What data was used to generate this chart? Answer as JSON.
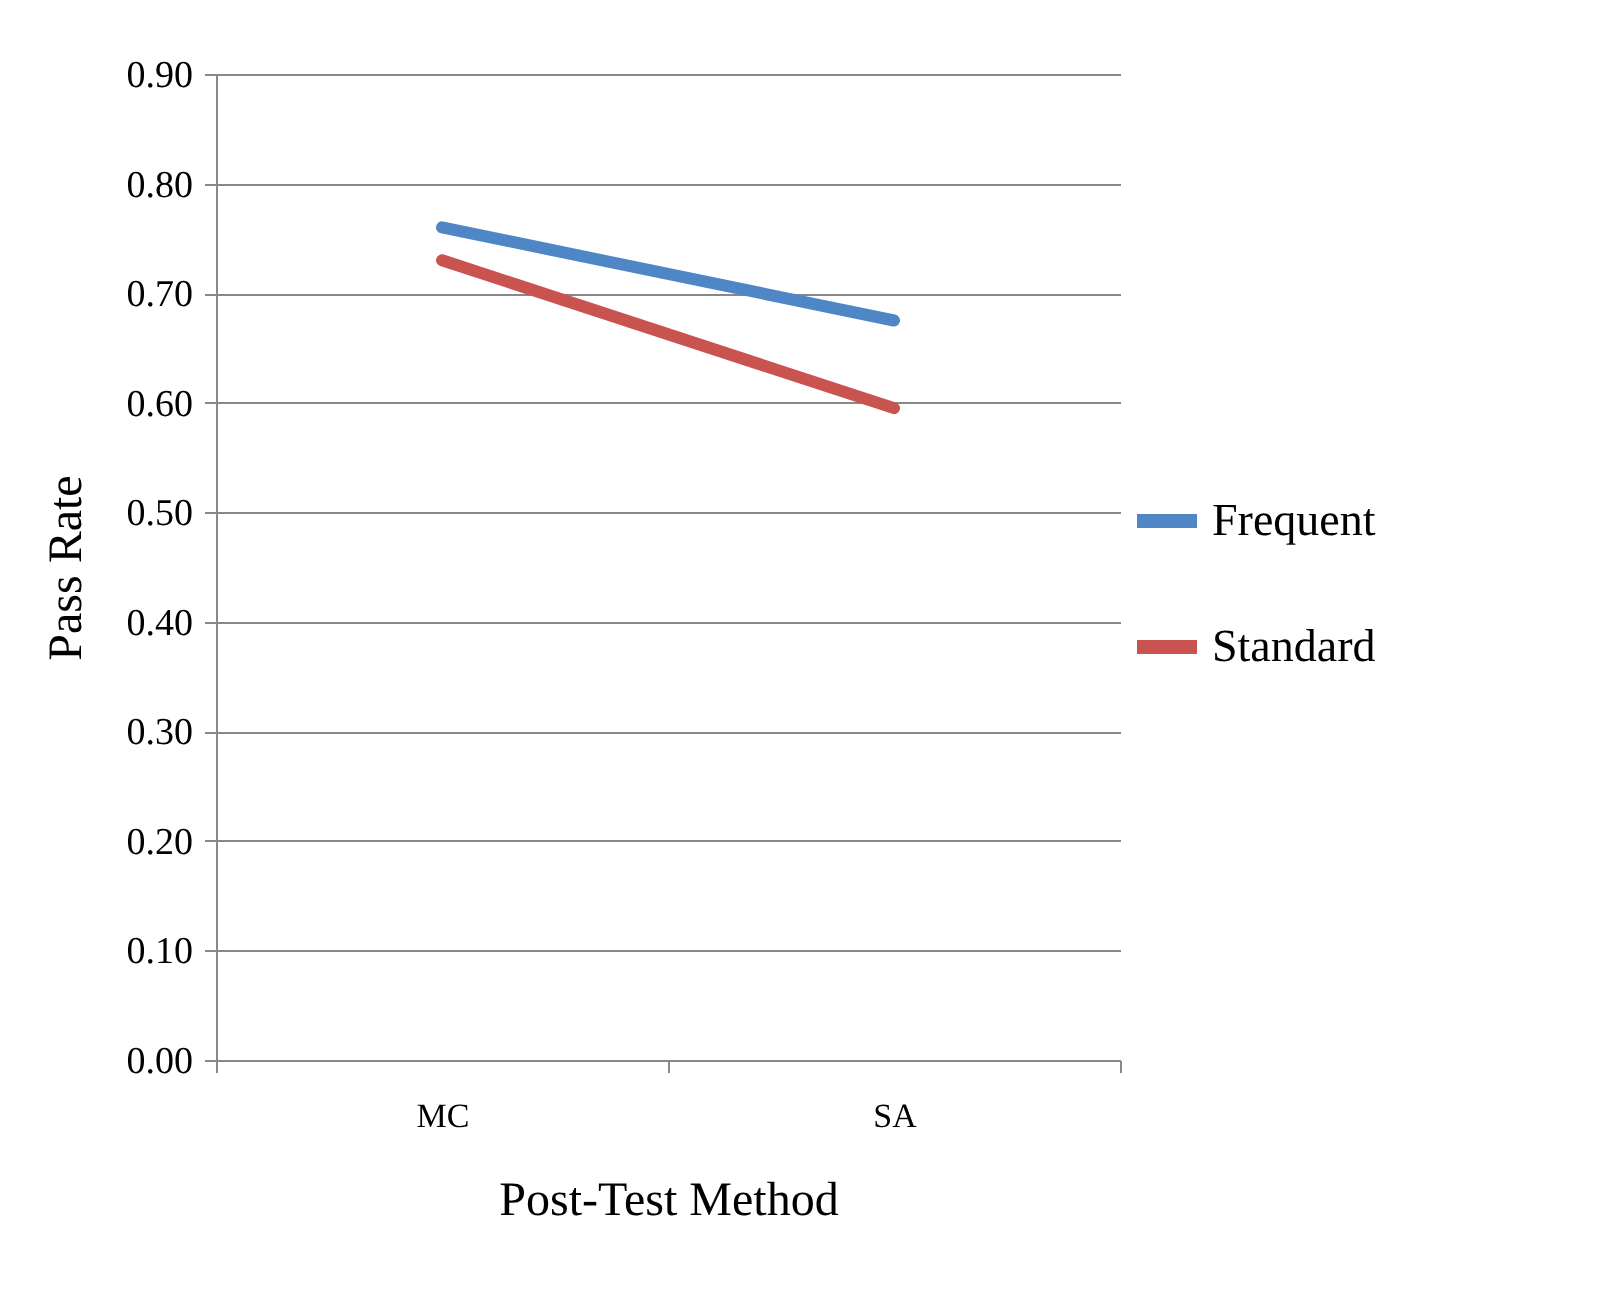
{
  "chart_data": {
    "type": "line",
    "xlabel": "Post-Test Method",
    "ylabel": "Pass Rate",
    "categories": [
      "MC",
      "SA"
    ],
    "series": [
      {
        "name": "Frequent",
        "color": "#4f86c6",
        "values": [
          0.76,
          0.675
        ]
      },
      {
        "name": "Standard",
        "color": "#c9534f",
        "values": [
          0.73,
          0.595
        ]
      }
    ],
    "ylim": [
      0,
      0.9
    ],
    "yticks": [
      {
        "value": 0,
        "label": "0.00"
      },
      {
        "value": 0.1,
        "label": "0.10"
      },
      {
        "value": 0.2,
        "label": "0.20"
      },
      {
        "value": 0.3,
        "label": "0.30"
      },
      {
        "value": 0.4,
        "label": "0.40"
      },
      {
        "value": 0.5,
        "label": "0.50"
      },
      {
        "value": 0.6,
        "label": "0.60"
      },
      {
        "value": 0.7,
        "label": "0.70"
      },
      {
        "value": 0.8,
        "label": "0.80"
      },
      {
        "value": 0.9,
        "label": "0.90"
      }
    ],
    "grid": "y",
    "legend": "right",
    "marker": "none",
    "line_style": "solid"
  }
}
